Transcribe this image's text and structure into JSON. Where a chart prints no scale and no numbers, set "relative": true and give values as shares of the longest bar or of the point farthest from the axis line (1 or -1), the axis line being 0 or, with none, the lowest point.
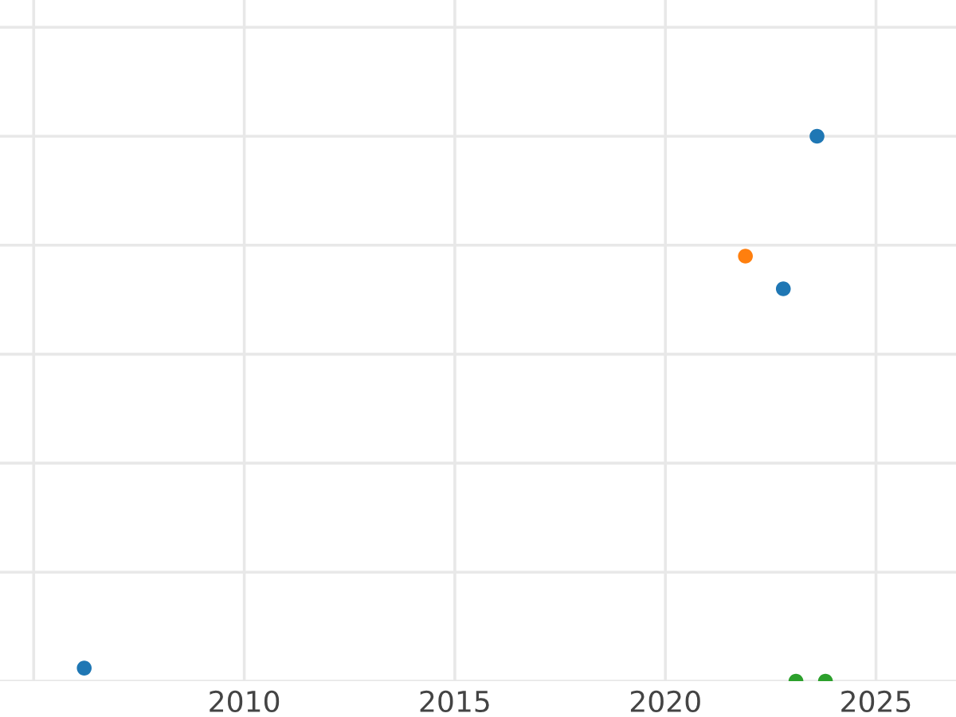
{
  "chart_data": {
    "type": "scatter",
    "relative": true,
    "grid": true,
    "marker": "circle",
    "tick_labels": "x",
    "xlim": [
      2004.2,
      2026.9
    ],
    "xticks": [
      {
        "value": 2005,
        "label": null
      },
      2010,
      2015,
      2020,
      2025
    ],
    "series": [
      {
        "color": "#1f77b4",
        "x": [
          2006.2,
          2022.8,
          2023.6
        ],
        "values": [
          0.024,
          0.72,
          1
        ]
      },
      {
        "color": "#ff7f0e",
        "x": [
          2021.9
        ],
        "values": [
          0.78
        ]
      },
      {
        "color": "#2ca02c",
        "x": [
          2023.1,
          2023.8
        ],
        "values": [
          0,
          0
        ]
      }
    ]
  }
}
